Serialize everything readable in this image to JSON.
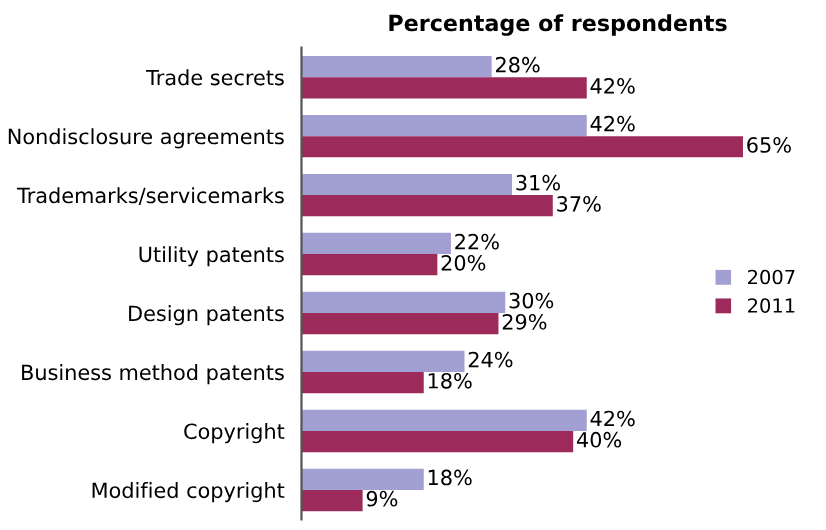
{
  "chart_data": {
    "type": "bar",
    "orientation": "horizontal",
    "title": "Percentage of respondents",
    "categories": [
      "Trade secrets",
      "Nondisclosure agreements",
      "Trademarks/servicemarks",
      "Utility patents",
      "Design patents",
      "Business method patents",
      "Copyright",
      "Modified copyright"
    ],
    "series": [
      {
        "name": "2007",
        "color": "#a29fd3",
        "values": [
          28,
          42,
          31,
          22,
          30,
          24,
          42,
          18
        ],
        "value_labels": [
          "28%",
          "42%",
          "31%",
          "22%",
          "30%",
          "24%",
          "42%",
          "18%"
        ]
      },
      {
        "name": "2011",
        "color": "#9c2b5c",
        "values": [
          42,
          65,
          37,
          20,
          29,
          18,
          40,
          9
        ],
        "value_labels": [
          "42%",
          "65%",
          "37%",
          "20%",
          "29%",
          "18%",
          "40%",
          "9%"
        ]
      }
    ],
    "legend": "right",
    "grid": false
  }
}
